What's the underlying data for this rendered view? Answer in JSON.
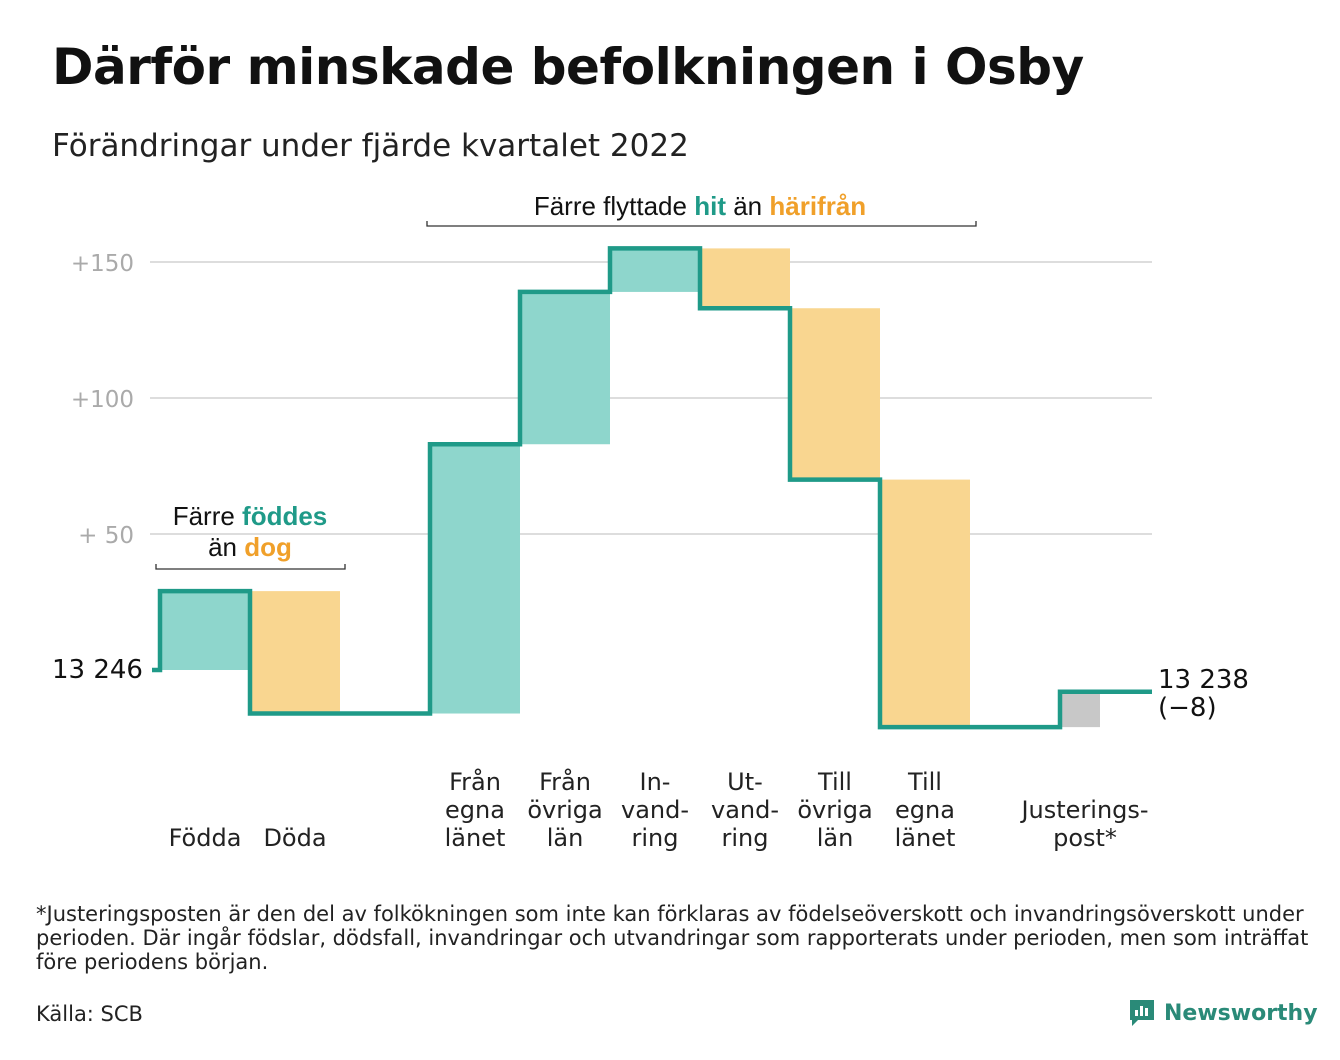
{
  "title": "Därför minskade befolkningen i Osby",
  "subtitle": "Förändringar under fjärde kvartalet 2022",
  "colors": {
    "in": "#8ed6cc",
    "out": "#f9d690",
    "adjust": "#c8c8c8",
    "line": "#1f9a88",
    "teal_text": "#1f9a88",
    "orange_text": "#f0a02a"
  },
  "annotations": {
    "births": {
      "line1_prefix": "Färre ",
      "line1_highlight": "föddes",
      "line2_prefix": "än ",
      "line2_highlight": "dog"
    },
    "migration": {
      "prefix": "Färre flyttade ",
      "highlight1": "hit",
      "middle": " än ",
      "highlight2": "härifrån"
    }
  },
  "chart_data": {
    "type": "waterfall",
    "start_value": 13246,
    "start_label": "13 246",
    "end_label": "13 238",
    "change_label": "(−8)",
    "y_ticks": [
      {
        "value": 50,
        "label": "+ 50"
      },
      {
        "value": 100,
        "label": "+100"
      },
      {
        "value": 150,
        "label": "+150"
      }
    ],
    "steps": [
      {
        "category": [
          "Födda"
        ],
        "delta": 29,
        "kind": "in"
      },
      {
        "category": [
          "Döda"
        ],
        "delta": -45,
        "kind": "out"
      },
      {
        "category": [
          "Från",
          "egna",
          "länet"
        ],
        "delta": 99,
        "kind": "in"
      },
      {
        "category": [
          "Från",
          "övriga",
          "län"
        ],
        "delta": 56,
        "kind": "in"
      },
      {
        "category": [
          "In-",
          "vand-",
          "ring"
        ],
        "delta": 16,
        "kind": "in"
      },
      {
        "category": [
          "Ut-",
          "vand-",
          "ring"
        ],
        "delta": -22,
        "kind": "out"
      },
      {
        "category": [
          "Till",
          "övriga",
          "län"
        ],
        "delta": -63,
        "kind": "out"
      },
      {
        "category": [
          "Till",
          "egna",
          "länet"
        ],
        "delta": -91,
        "kind": "out"
      },
      {
        "category": [
          "Justerings-",
          "post*"
        ],
        "delta": 13,
        "kind": "adjust"
      }
    ]
  },
  "footnote": "*Justeringsposten är den del av folkökningen som inte kan förklaras av födelseöverskott och invandringsöverskott under perioden. Där ingår födslar, dödsfall, invandringar och utvandringar som rapporterats under perioden, men som inträffat före periodens början.",
  "source": "Källa: SCB",
  "brand": "Newsworthy"
}
